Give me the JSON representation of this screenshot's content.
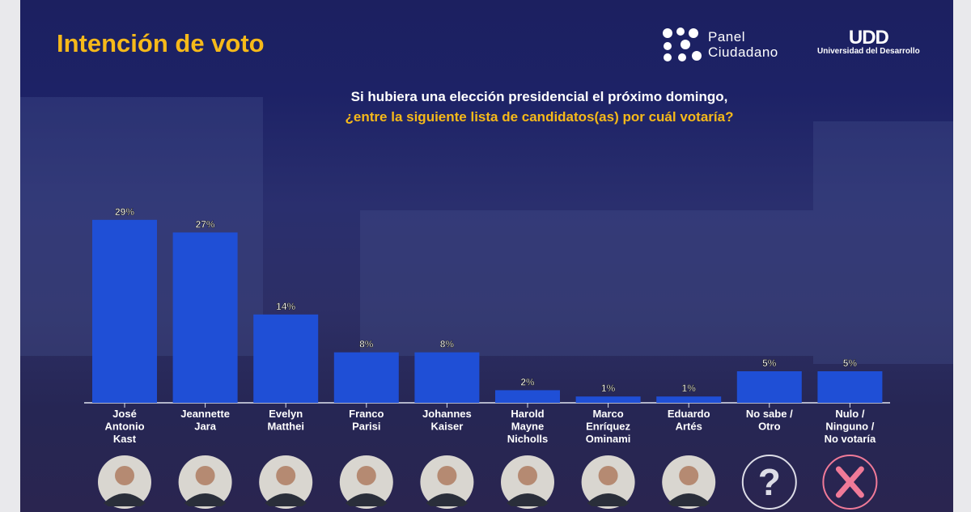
{
  "header": {
    "title": "Intención de voto",
    "question_line1": "Si hubiera una elección presidencial el próximo domingo,",
    "question_line2": "¿entre la siguiente lista de candidatos(as) por cuál votaría?"
  },
  "logos": {
    "panel": "Panel",
    "ciudadano": "Ciudadano",
    "udd_mark": "UDD",
    "udd_name": "Universidad del Desarrollo"
  },
  "colors": {
    "bar": "#1f4fd6",
    "title": "#f6b91a"
  },
  "chart_data": {
    "type": "bar",
    "title": "Intención de voto",
    "xlabel": "",
    "ylabel": "",
    "ylim": [
      0,
      30
    ],
    "grid": false,
    "categories": [
      [
        "José",
        "Antonio",
        "Kast"
      ],
      [
        "Jeannette",
        "Jara"
      ],
      [
        "Evelyn",
        "Matthei"
      ],
      [
        "Franco",
        "Parisi"
      ],
      [
        "Johannes",
        "Kaiser"
      ],
      [
        "Harold",
        "Mayne",
        "Nicholls"
      ],
      [
        "Marco",
        "Enríquez",
        "Ominami"
      ],
      [
        "Eduardo",
        "Artés"
      ],
      [
        "No sabe /",
        "Otro"
      ],
      [
        "Nulo /",
        "Ninguno /",
        "No votaría"
      ]
    ],
    "values": [
      29,
      27,
      14,
      8,
      8,
      2,
      1,
      1,
      5,
      5
    ],
    "data_labels": [
      "29%",
      "27%",
      "14%",
      "8%",
      "8%",
      "2%",
      "1%",
      "1%",
      "5%",
      "5%"
    ],
    "icons": [
      "photo",
      "photo",
      "photo",
      "photo",
      "photo",
      "photo",
      "photo",
      "photo",
      "question-icon",
      "x-icon"
    ]
  }
}
